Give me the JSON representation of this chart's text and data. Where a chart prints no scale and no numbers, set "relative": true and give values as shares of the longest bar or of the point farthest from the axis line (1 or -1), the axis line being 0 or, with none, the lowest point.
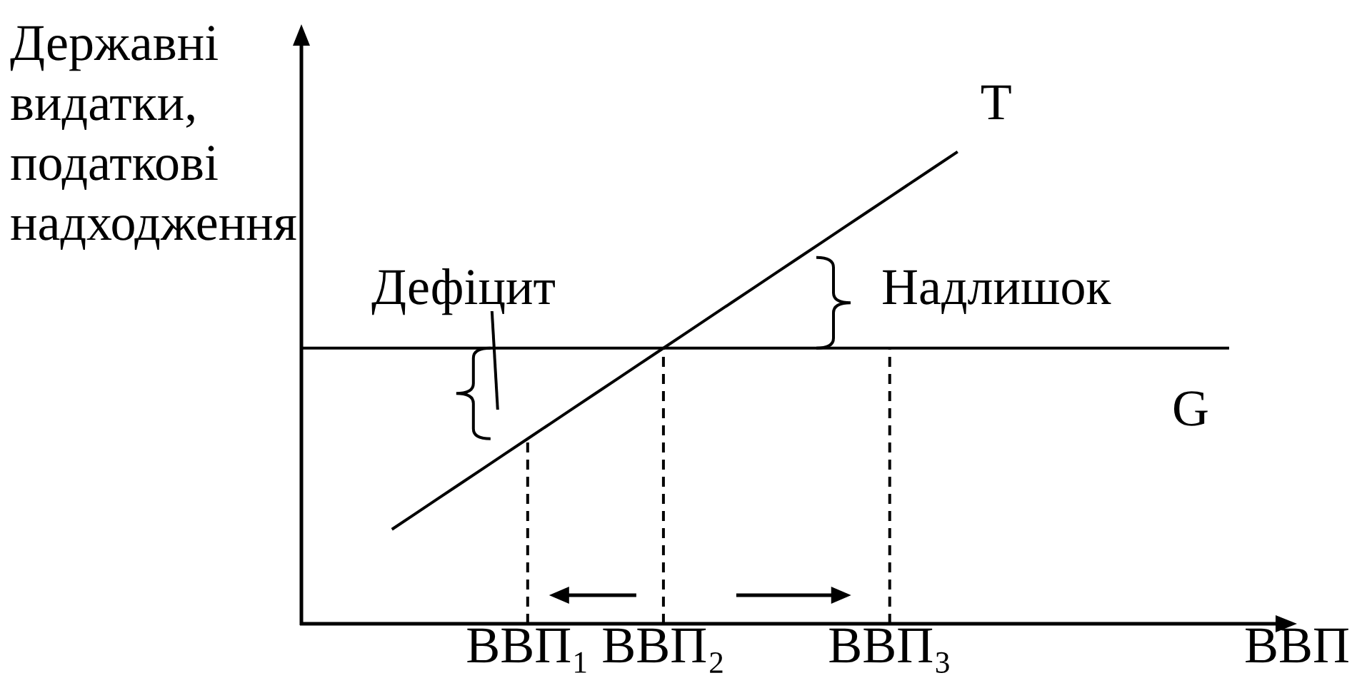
{
  "chart_data": {
    "type": "line",
    "relative": true,
    "xlabel": "ВВП",
    "ylabel": "Державні видатки, податкові надходження",
    "categories": [
      null,
      null,
      null,
      null,
      null,
      null,
      null,
      null,
      null,
      null,
      "ВВП₁",
      null,
      null,
      null,
      null,
      null,
      "ВВП₂",
      null,
      null,
      null,
      null,
      null,
      null,
      null,
      null,
      null,
      "ВВП₃",
      null,
      null,
      null,
      null,
      null,
      null,
      null,
      null,
      null,
      null,
      null,
      null,
      null,
      null,
      null,
      null,
      null,
      null
    ],
    "series": [
      {
        "name": "T",
        "color": "#000000",
        "values": [
          null,
          null,
          null,
          null,
          0.2,
          0.232,
          0.264,
          0.296,
          0.328,
          0.36,
          0.392,
          0.424,
          0.456,
          0.488,
          0.52,
          0.552,
          0.584,
          0.616,
          0.648,
          0.68,
          0.712,
          0.744,
          0.776,
          0.808,
          0.84,
          0.872,
          0.904,
          0.936,
          0.968,
          1.0,
          null,
          null,
          null,
          null,
          null,
          null,
          null,
          null,
          null,
          null,
          null,
          null,
          null,
          null,
          null
        ]
      },
      {
        "name": "G",
        "color": "#000000",
        "values": [
          0.584,
          0.584,
          0.584,
          0.584,
          0.584,
          0.584,
          0.584,
          0.584,
          0.584,
          0.584,
          0.584,
          0.584,
          0.584,
          0.584,
          0.584,
          0.584,
          0.584,
          0.584,
          0.584,
          0.584,
          0.584,
          0.584,
          0.584,
          0.584,
          0.584,
          0.584,
          0.584,
          0.584,
          0.584,
          0.584,
          0.584,
          0.584,
          0.584,
          0.584,
          0.584,
          0.584,
          0.584,
          0.584,
          0.584,
          0.584,
          0.584,
          0.584,
          null,
          null,
          null
        ]
      }
    ],
    "ref_lines": [
      {
        "axis": "x",
        "value": "ВВП₁",
        "line_style": "dashed",
        "color": "#000000"
      },
      {
        "axis": "x",
        "value": "ВВП₂",
        "line_style": "dashed",
        "color": "#000000"
      },
      {
        "axis": "x",
        "value": "ВВП₃",
        "line_style": "dashed",
        "color": "#000000"
      }
    ],
    "annotations": [
      "Дефіцит",
      "Надлишок"
    ],
    "marker": "none"
  }
}
